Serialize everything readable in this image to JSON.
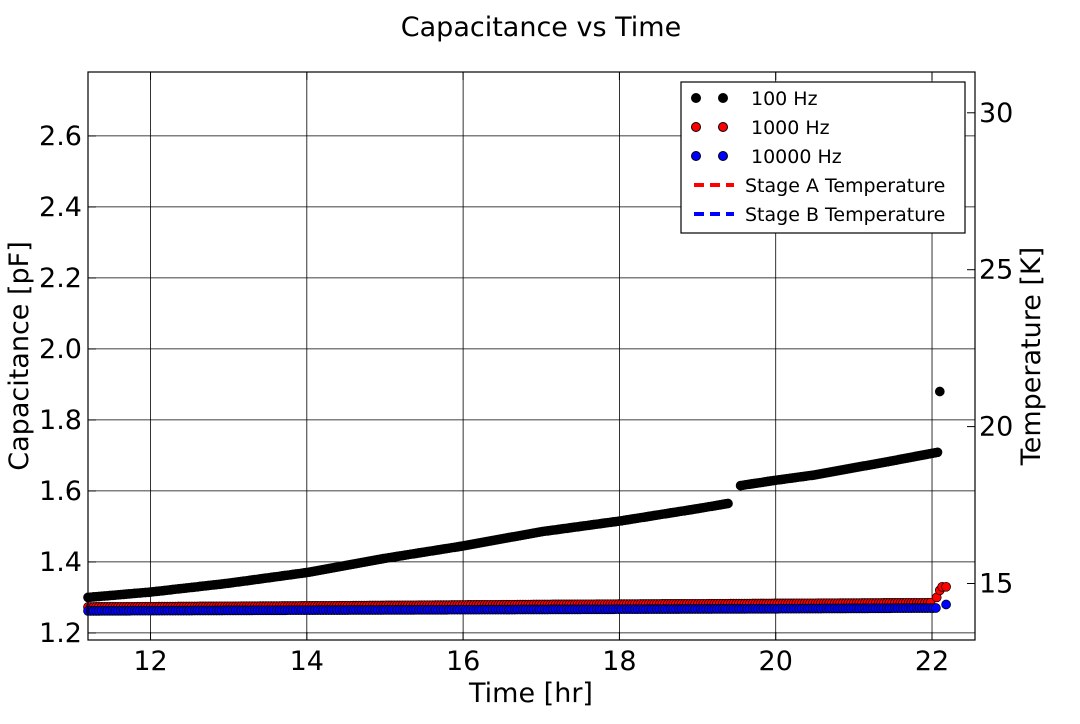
{
  "chart_data": {
    "type": "scatter",
    "title": "Capacitance vs Time",
    "xlabel": "Time [hr]",
    "ylabel": "Capacitance [pF]",
    "y2label": "Temperature [K]",
    "xlim": [
      11.2,
      22.55
    ],
    "ylim": [
      1.18,
      2.78
    ],
    "y2lim": [
      13.2,
      31.3
    ],
    "xticks": [
      12,
      14,
      16,
      18,
      20,
      22
    ],
    "yticks": [
      1.2,
      1.4,
      1.6,
      1.8,
      2.0,
      2.2,
      2.4,
      2.6
    ],
    "y2ticks": [
      15,
      20,
      25,
      30
    ],
    "grid": true,
    "legend_position": "top-right",
    "series": [
      {
        "name": "100 Hz",
        "color": "#000000",
        "marker": "circle",
        "segments": [
          {
            "x_range": [
              11.2,
              19.4
            ],
            "points": [
              [
                11.2,
                1.3
              ],
              [
                12.0,
                1.315
              ],
              [
                13.0,
                1.34
              ],
              [
                14.0,
                1.37
              ],
              [
                15.0,
                1.41
              ],
              [
                16.0,
                1.445
              ],
              [
                17.0,
                1.485
              ],
              [
                18.0,
                1.515
              ],
              [
                19.0,
                1.55
              ],
              [
                19.4,
                1.565
              ]
            ]
          },
          {
            "x_range": [
              19.55,
              22.1
            ],
            "points": [
              [
                19.55,
                1.615
              ],
              [
                20.0,
                1.63
              ],
              [
                20.5,
                1.645
              ],
              [
                21.0,
                1.665
              ],
              [
                21.5,
                1.685
              ],
              [
                22.1,
                1.71
              ]
            ]
          }
        ],
        "outliers": [
          [
            22.1,
            1.88
          ]
        ]
      },
      {
        "name": "1000 Hz",
        "color": "#ff0000",
        "marker": "circle",
        "segments": [
          {
            "x_range": [
              11.2,
              22.0
            ],
            "points": [
              [
                11.2,
                1.273
              ],
              [
                14.0,
                1.276
              ],
              [
                17.0,
                1.28
              ],
              [
                20.0,
                1.283
              ],
              [
                22.0,
                1.285
              ]
            ]
          }
        ],
        "outliers": [
          [
            22.06,
            1.3
          ],
          [
            22.1,
            1.32
          ],
          [
            22.13,
            1.33
          ],
          [
            22.18,
            1.33
          ]
        ]
      },
      {
        "name": "10000 Hz",
        "color": "#0000ff",
        "marker": "circle",
        "segments": [
          {
            "x_range": [
              11.2,
              22.05
            ],
            "points": [
              [
                11.2,
                1.262
              ],
              [
                14.0,
                1.264
              ],
              [
                17.0,
                1.266
              ],
              [
                20.0,
                1.268
              ],
              [
                22.05,
                1.27
              ]
            ]
          }
        ],
        "outliers": [
          [
            22.18,
            1.28
          ]
        ]
      }
    ],
    "temperature_series": [
      {
        "name": "Stage A Temperature",
        "color": "#ff0000",
        "style": "dashed",
        "points": []
      },
      {
        "name": "Stage B Temperature",
        "color": "#0000ff",
        "style": "dashed",
        "points": []
      }
    ]
  }
}
